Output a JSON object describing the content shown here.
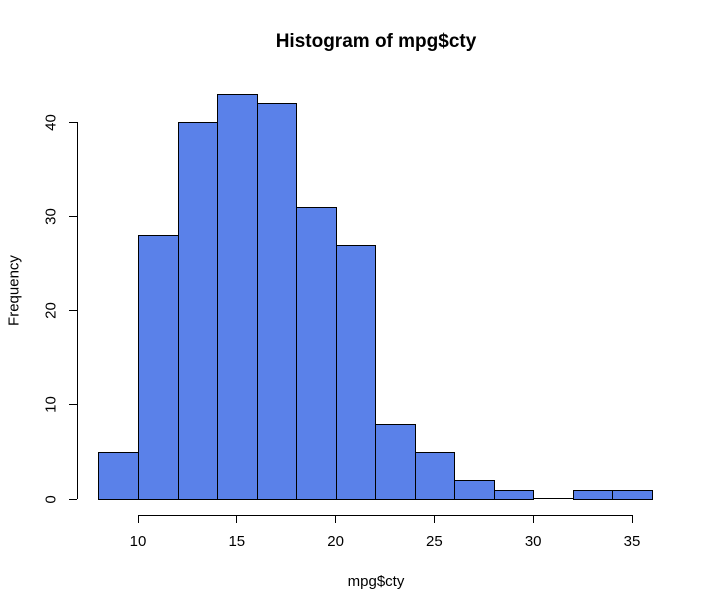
{
  "chart_data": {
    "type": "bar",
    "subtype": "histogram",
    "title": "Histogram of mpg$cty",
    "xlabel": "mpg$cty",
    "ylabel": "Frequency",
    "breaks": [
      8,
      10,
      12,
      14,
      16,
      18,
      20,
      22,
      24,
      26,
      28,
      30,
      32,
      34,
      36
    ],
    "bins": [
      "8-10",
      "10-12",
      "12-14",
      "14-16",
      "16-18",
      "18-20",
      "20-22",
      "22-24",
      "24-26",
      "26-28",
      "28-30",
      "30-32",
      "32-34",
      "34-36"
    ],
    "counts": [
      5,
      28,
      40,
      43,
      42,
      31,
      27,
      8,
      5,
      2,
      1,
      0,
      1,
      1
    ],
    "x_ticks": [
      10,
      15,
      20,
      25,
      30,
      35
    ],
    "y_ticks": [
      0,
      10,
      20,
      30,
      40
    ],
    "xlim": [
      8,
      36
    ],
    "ylim": [
      0,
      43
    ],
    "grid": false,
    "legend": false,
    "colors": {
      "bar_fill": "#5A81E9",
      "bar_border": "#000000",
      "axis": "#000000",
      "text": "#000000",
      "background": "#FFFFFF"
    }
  }
}
